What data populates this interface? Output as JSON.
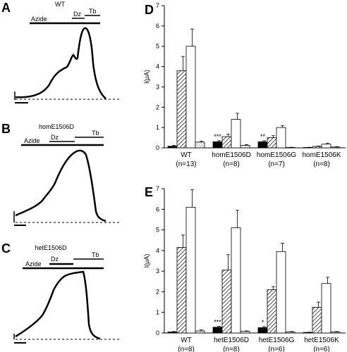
{
  "panels": {
    "A": {
      "letter": "A",
      "title": "WT",
      "labels": [
        "Azide",
        "Dz",
        "Tb"
      ]
    },
    "B": {
      "letter": "B",
      "title": "homE1506D",
      "labels": [
        "Azide",
        "Dz",
        "Tb"
      ]
    },
    "C": {
      "letter": "C",
      "title": "hetE1506D",
      "labels": [
        "Azide",
        "Dz",
        "Tb"
      ]
    },
    "D": {
      "letter": "D"
    },
    "E": {
      "letter": "E"
    }
  },
  "chart_data": [
    {
      "panel": "D",
      "type": "bar",
      "ylabel": "I(μA)",
      "ylim": [
        0,
        7
      ],
      "yticks": [
        0,
        1,
        2,
        3,
        4,
        5,
        6,
        7
      ],
      "categories": [
        "WT",
        "homE1506D",
        "homE1506G",
        "homE1506K"
      ],
      "ns": [
        "(n=13)",
        "(n=8)",
        "(n=7)",
        "(n=8)"
      ],
      "bar_styles": [
        "black",
        "hatched",
        "white",
        "hatched-light"
      ],
      "groups": [
        {
          "values": [
            0.08,
            3.8,
            5.0,
            0.28
          ],
          "errors": [
            0.04,
            0.7,
            0.85,
            0.05
          ],
          "mark": ""
        },
        {
          "values": [
            0.3,
            0.55,
            1.4,
            0.12
          ],
          "errors": [
            0.05,
            0.12,
            0.3,
            0.04
          ],
          "mark": "***"
        },
        {
          "values": [
            0.3,
            0.5,
            1.0,
            0.02
          ],
          "errors": [
            0.05,
            0.1,
            0.1,
            0.01
          ],
          "mark": "**"
        },
        {
          "values": [
            0.02,
            0.07,
            0.18,
            0.04
          ],
          "errors": [
            0.01,
            0.02,
            0.04,
            0.02
          ],
          "mark": ""
        }
      ]
    },
    {
      "panel": "E",
      "type": "bar",
      "ylabel": "I(μA)",
      "ylim": [
        0,
        7
      ],
      "yticks": [
        0,
        1,
        2,
        3,
        4,
        5,
        6,
        7
      ],
      "categories": [
        "WT",
        "hetE1506D",
        "hetE1506G",
        "hetE1506K"
      ],
      "ns": [
        "(n=8)",
        "(n=8)",
        "(n=6)",
        "(n=6)"
      ],
      "bar_styles": [
        "black",
        "hatched",
        "white",
        "hatched-light"
      ],
      "groups": [
        {
          "values": [
            0.05,
            4.15,
            6.1,
            0.1
          ],
          "errors": [
            0.02,
            0.6,
            0.85,
            0.05
          ],
          "mark": ""
        },
        {
          "values": [
            0.28,
            3.05,
            5.1,
            0.08
          ],
          "errors": [
            0.05,
            0.75,
            0.85,
            0.02
          ],
          "mark": "***"
        },
        {
          "values": [
            0.26,
            2.1,
            3.95,
            0.05
          ],
          "errors": [
            0.05,
            0.15,
            0.4,
            0.02
          ],
          "mark": "*"
        },
        {
          "values": [
            0.03,
            1.25,
            2.4,
            0.05
          ],
          "errors": [
            0.01,
            0.25,
            0.3,
            0.02
          ],
          "mark": ""
        }
      ]
    }
  ]
}
